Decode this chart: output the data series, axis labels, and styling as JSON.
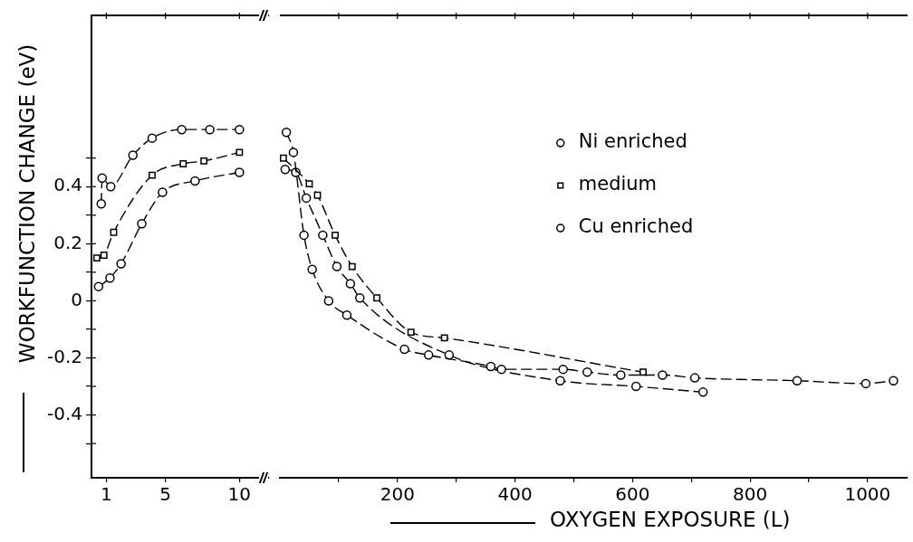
{
  "chart_data": [
    {
      "type": "line",
      "ylabel": "WORKFUNCTION CHANGE (eV)",
      "xlim": [
        0,
        12
      ],
      "xticks": [
        1,
        5,
        10
      ],
      "ylim": [
        -0.62,
        1.0
      ],
      "yticks": [
        {
          "value": -0.5,
          "label": null
        },
        -0.4,
        {
          "value": -0.3,
          "label": null
        },
        -0.2,
        {
          "value": -0.1,
          "label": null
        },
        0,
        {
          "value": 0.1,
          "label": null
        },
        0.2,
        {
          "value": 0.3,
          "label": null
        },
        0.4,
        {
          "value": 0.5,
          "label": null
        }
      ],
      "series": [
        {
          "color": "#000000",
          "marker": "circle",
          "line_style": "dashed",
          "x": [
            0.66,
            0.72,
            1.3,
            2.8,
            4.1,
            6.1,
            8.0,
            10.0
          ],
          "values": [
            0.34,
            0.43,
            0.4,
            0.51,
            0.57,
            0.6,
            0.6,
            0.6
          ]
        },
        {
          "color": "#000000",
          "marker": "square",
          "line_style": "dashed",
          "x": [
            0.36,
            0.84,
            1.5,
            4.1,
            6.2,
            7.6,
            10.0
          ],
          "values": [
            0.15,
            0.16,
            0.24,
            0.44,
            0.48,
            0.49,
            0.52
          ]
        },
        {
          "color": "#000000",
          "marker": "circle",
          "line_style": "dashed",
          "x": [
            0.48,
            1.25,
            2.0,
            3.4,
            4.8,
            7.0,
            10.0
          ],
          "values": [
            0.05,
            0.08,
            0.13,
            0.27,
            0.38,
            0.42,
            0.45
          ]
        }
      ]
    },
    {
      "type": "line",
      "xlabel": "OXYGEN EXPOSURE (L)",
      "xlim": [
        0,
        1068
      ],
      "xticks": [
        {
          "value": 100,
          "label": null
        },
        200,
        {
          "value": 300,
          "label": null
        },
        400,
        {
          "value": 500,
          "label": null
        },
        600,
        {
          "value": 700,
          "label": null
        },
        800,
        {
          "value": 900,
          "label": null
        },
        1000
      ],
      "ylim": [
        -0.62,
        1.0
      ],
      "tick_labels": "x",
      "legend": "top right",
      "series": [
        {
          "name": "Ni enriched",
          "color": "#000000",
          "marker": "circle",
          "line_style": "dashed",
          "x": [
            11,
            23,
            41,
            55,
            83,
            114,
            212,
            253,
            359,
            377,
            482,
            523,
            580,
            651,
            706,
            880,
            997,
            1044
          ],
          "values": [
            0.59,
            0.52,
            0.23,
            0.11,
            0.0,
            -0.05,
            -0.17,
            -0.19,
            -0.23,
            -0.24,
            -0.24,
            -0.25,
            -0.26,
            -0.26,
            -0.27,
            -0.28,
            -0.29,
            -0.28
          ]
        },
        {
          "name": "medium",
          "color": "#000000",
          "marker": "square",
          "line_style": "dashed",
          "x": [
            6,
            50,
            64,
            94,
            123,
            165,
            223,
            280,
            618
          ],
          "values": [
            0.5,
            0.41,
            0.37,
            0.23,
            0.12,
            0.01,
            -0.11,
            -0.13,
            -0.25
          ]
        },
        {
          "name": "Cu enriched",
          "color": "#000000",
          "marker": "circle",
          "line_style": "dashed",
          "x": [
            9,
            27,
            45,
            73,
            97,
            120,
            136,
            288,
            477,
            606,
            720
          ],
          "values": [
            0.46,
            0.45,
            0.36,
            0.23,
            0.12,
            0.06,
            0.01,
            -0.19,
            -0.28,
            -0.3,
            -0.32
          ]
        }
      ]
    }
  ]
}
